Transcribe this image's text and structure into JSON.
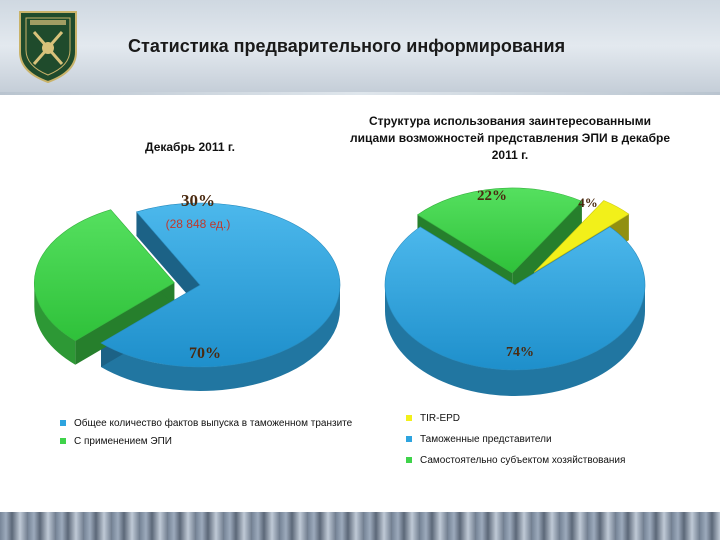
{
  "header": {
    "title": "Статистика предварительного информирования"
  },
  "colors": {
    "blue": "#2ea4df",
    "green": "#3fd34a",
    "yellow": "#f2f01a",
    "dark_green": "#2f8b2a"
  },
  "chart_data": [
    {
      "type": "pie",
      "title": "Декабрь 2011 г.",
      "slices": [
        {
          "label": "70%",
          "value": 70,
          "color": "#2ea4df"
        },
        {
          "label": "30%",
          "value": 30,
          "color": "#3fd34a",
          "sublabel": "(28 848 ед.)"
        }
      ],
      "legend": [
        {
          "text": "Общее количество фактов выпуска в таможенном транзите",
          "color": "#2ea4df"
        },
        {
          "text": "С применением ЭПИ",
          "color": "#3fd34a"
        }
      ]
    },
    {
      "type": "pie",
      "title": "Структура использования заинтересованными лицами возможностей представления ЭПИ в декабре 2011 г.",
      "slices": [
        {
          "label": "74%",
          "value": 74,
          "color": "#2ea4df"
        },
        {
          "label": "22%",
          "value": 22,
          "color": "#3fd34a"
        },
        {
          "label": "4%",
          "value": 4,
          "color": "#f2f01a"
        }
      ],
      "legend": [
        {
          "text": "TIR-EPD",
          "color": "#f2f01a"
        },
        {
          "text": "Таможенные представители",
          "color": "#2ea4df"
        },
        {
          "text": "Самостоятельно субъектом хозяйствования",
          "color": "#3fd34a"
        }
      ]
    }
  ]
}
